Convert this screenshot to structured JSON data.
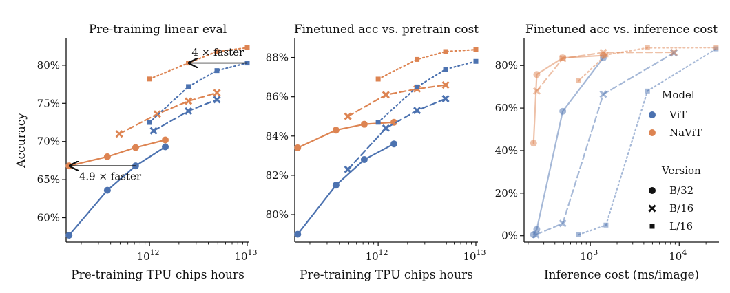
{
  "colors": {
    "vit": "#4C72B0",
    "navit": "#DD8452",
    "axis": "#111111"
  },
  "figure": {
    "ylabel": "Accuracy",
    "legend": {
      "title_model": "Model",
      "vit": "ViT",
      "navit": "NaViT",
      "title_version": "Version",
      "b32": "B/32",
      "b16": "B/16",
      "l16": "L/16",
      "placement": "right of third panel"
    }
  },
  "chart_data": [
    {
      "type": "line",
      "title": "Pre-training linear eval",
      "xlabel": "Pre-training TPU chips hours",
      "ylabel": "Accuracy",
      "xscale": "log",
      "xlim": [
        140000000000.0,
        10500000000000.0
      ],
      "ylim": [
        56.8,
        83.6
      ],
      "xticks": [
        {
          "v": 1000000000000.0,
          "base": "10",
          "exp": "12"
        },
        {
          "v": 10000000000000.0,
          "base": "10",
          "exp": "13"
        }
      ],
      "yticks": [
        {
          "v": 60,
          "label": "60%"
        },
        {
          "v": 65,
          "label": "65%"
        },
        {
          "v": 70,
          "label": "70%"
        },
        {
          "v": 75,
          "label": "75%"
        },
        {
          "v": 80,
          "label": "80%"
        }
      ],
      "series": [
        {
          "model": "vit",
          "version": "B/32",
          "style": "solid",
          "marker": "circle",
          "alpha": 1,
          "points": [
            [
              150000000000.0,
              57.7
            ],
            [
              370000000000.0,
              63.6
            ],
            [
              720000000000.0,
              66.8
            ],
            [
              1450000000000.0,
              69.3
            ]
          ]
        },
        {
          "model": "navit",
          "version": "B/32",
          "style": "solid",
          "marker": "circle",
          "alpha": 1,
          "points": [
            [
              150000000000.0,
              66.8
            ],
            [
              370000000000.0,
              68.0
            ],
            [
              720000000000.0,
              69.2
            ],
            [
              1450000000000.0,
              70.2
            ]
          ]
        },
        {
          "model": "vit",
          "version": "B/16",
          "style": "dashed",
          "marker": "x",
          "alpha": 1,
          "points": [
            [
              1100000000000.0,
              71.4
            ],
            [
              2500000000000.0,
              74.0
            ],
            [
              4900000000000.0,
              75.5
            ]
          ]
        },
        {
          "model": "navit",
          "version": "B/16",
          "style": "dashed",
          "marker": "x",
          "alpha": 1,
          "points": [
            [
              490000000000.0,
              71.0
            ],
            [
              1200000000000.0,
              73.6
            ],
            [
              2500000000000.0,
              75.3
            ],
            [
              4900000000000.0,
              76.4
            ]
          ]
        },
        {
          "model": "vit",
          "version": "L/16",
          "style": "dotted",
          "marker": "square",
          "alpha": 1,
          "points": [
            [
              1000000000000.0,
              72.5
            ],
            [
              2500000000000.0,
              77.2
            ],
            [
              4900000000000.0,
              79.3
            ],
            [
              10000000000000.0,
              80.3
            ]
          ]
        },
        {
          "model": "navit",
          "version": "L/16",
          "style": "dotted",
          "marker": "square",
          "alpha": 1,
          "points": [
            [
              1000000000000.0,
              78.2
            ],
            [
              2500000000000.0,
              80.3
            ],
            [
              4900000000000.0,
              81.8
            ],
            [
              10000000000000.0,
              82.3
            ]
          ]
        }
      ],
      "annotations": [
        {
          "label": "4 × faster",
          "from": [
            10000000000000.0,
            80.3
          ],
          "to": [
            2500000000000.0,
            80.3
          ],
          "text_at": [
            2700000000000.0,
            81.7
          ],
          "anchor": "start"
        },
        {
          "label": "4.9 × faster",
          "from": [
            720000000000.0,
            66.8
          ],
          "to": [
            150000000000.0,
            66.8
          ],
          "text_at": [
            190000000000.0,
            65.4
          ],
          "anchor": "start"
        }
      ]
    },
    {
      "type": "line",
      "title": "Finetuned acc vs. pretrain cost",
      "xlabel": "Pre-training TPU chips hours",
      "ylabel": "",
      "xscale": "log",
      "xlim": [
        140000000000.0,
        10500000000000.0
      ],
      "ylim": [
        78.6,
        89.0
      ],
      "xticks": [
        {
          "v": 1000000000000.0,
          "base": "10",
          "exp": "12"
        },
        {
          "v": 10000000000000.0,
          "base": "10",
          "exp": "13"
        }
      ],
      "yticks": [
        {
          "v": 80,
          "label": "80%"
        },
        {
          "v": 82,
          "label": "82%"
        },
        {
          "v": 84,
          "label": "84%"
        },
        {
          "v": 86,
          "label": "86%"
        },
        {
          "v": 88,
          "label": "88%"
        }
      ],
      "series": [
        {
          "model": "vit",
          "version": "B/32",
          "style": "solid",
          "marker": "circle",
          "alpha": 1,
          "points": [
            [
              150000000000.0,
              79.0
            ],
            [
              370000000000.0,
              81.5
            ],
            [
              720000000000.0,
              82.8
            ],
            [
              1450000000000.0,
              83.6
            ]
          ]
        },
        {
          "model": "navit",
          "version": "B/32",
          "style": "solid",
          "marker": "circle",
          "alpha": 1,
          "points": [
            [
              150000000000.0,
              83.4
            ],
            [
              370000000000.0,
              84.3
            ],
            [
              720000000000.0,
              84.6
            ],
            [
              1450000000000.0,
              84.7
            ]
          ]
        },
        {
          "model": "vit",
          "version": "B/16",
          "style": "dashed",
          "marker": "x",
          "alpha": 1,
          "points": [
            [
              490000000000.0,
              82.3
            ],
            [
              1200000000000.0,
              84.4
            ],
            [
              2500000000000.0,
              85.3
            ],
            [
              4900000000000.0,
              85.9
            ]
          ]
        },
        {
          "model": "navit",
          "version": "B/16",
          "style": "dashed",
          "marker": "x",
          "alpha": 1,
          "points": [
            [
              490000000000.0,
              85.0
            ],
            [
              1200000000000.0,
              86.1
            ],
            [
              2500000000000.0,
              86.4
            ],
            [
              4900000000000.0,
              86.6
            ]
          ]
        },
        {
          "model": "vit",
          "version": "L/16",
          "style": "dotted",
          "marker": "square",
          "alpha": 1,
          "points": [
            [
              1000000000000.0,
              84.7
            ],
            [
              2500000000000.0,
              86.5
            ],
            [
              4900000000000.0,
              87.4
            ],
            [
              10000000000000.0,
              87.8
            ]
          ]
        },
        {
          "model": "navit",
          "version": "L/16",
          "style": "dotted",
          "marker": "square",
          "alpha": 1,
          "points": [
            [
              1000000000000.0,
              86.9
            ],
            [
              2500000000000.0,
              87.9
            ],
            [
              4900000000000.0,
              88.3
            ],
            [
              10000000000000.0,
              88.4
            ]
          ]
        }
      ],
      "annotations": []
    },
    {
      "type": "line",
      "title": "Finetuned acc vs. inference cost",
      "xlabel": "Inference cost (ms/image)",
      "ylabel": "",
      "xscale": "log",
      "xlim": [
        180,
        28000
      ],
      "ylim": [
        -3,
        93
      ],
      "xticks": [
        {
          "v": 1000,
          "base": "10",
          "exp": "3"
        },
        {
          "v": 10000,
          "base": "10",
          "exp": "4"
        }
      ],
      "yticks": [
        {
          "v": 0,
          "label": "0%"
        },
        {
          "v": 20,
          "label": "20%"
        },
        {
          "v": 40,
          "label": "40%"
        },
        {
          "v": 60,
          "label": "60%"
        },
        {
          "v": 80,
          "label": "80%"
        }
      ],
      "series": [
        {
          "model": "vit",
          "version": "B/32",
          "style": "solid",
          "marker": "circle",
          "alpha": 0.5,
          "points": [
            [
              230,
              0.5
            ],
            [
              250,
              3.0
            ],
            [
              490,
              58.5
            ],
            [
              1400,
              83.6
            ]
          ]
        },
        {
          "model": "navit",
          "version": "B/32",
          "style": "solid",
          "marker": "circle",
          "alpha": 0.5,
          "points": [
            [
              230,
              43.5
            ],
            [
              250,
              75.8
            ],
            [
              490,
              83.6
            ],
            [
              1400,
              84.7
            ]
          ]
        },
        {
          "model": "vit",
          "version": "B/16",
          "style": "dashed",
          "marker": "x",
          "alpha": 0.5,
          "points": [
            [
              245,
              0.5
            ],
            [
              490,
              5.8
            ],
            [
              1400,
              66.5
            ],
            [
              8700,
              85.9
            ]
          ]
        },
        {
          "model": "navit",
          "version": "B/16",
          "style": "dashed",
          "marker": "x",
          "alpha": 0.5,
          "points": [
            [
              250,
              68.0
            ],
            [
              490,
              83.3
            ],
            [
              1400,
              86.1
            ],
            [
              8700,
              86.2
            ]
          ]
        },
        {
          "model": "vit",
          "version": "L/16",
          "style": "dotted",
          "marker": "square",
          "alpha": 0.5,
          "points": [
            [
              740,
              0.5
            ],
            [
              1500,
              5.0
            ],
            [
              4400,
              68.0
            ],
            [
              26000,
              87.8
            ]
          ]
        },
        {
          "model": "navit",
          "version": "L/16",
          "style": "dotted",
          "marker": "square",
          "alpha": 0.5,
          "points": [
            [
              740,
              72.8
            ],
            [
              1500,
              85.0
            ],
            [
              4400,
              88.3
            ],
            [
              26000,
              88.4
            ]
          ]
        }
      ],
      "annotations": []
    }
  ]
}
